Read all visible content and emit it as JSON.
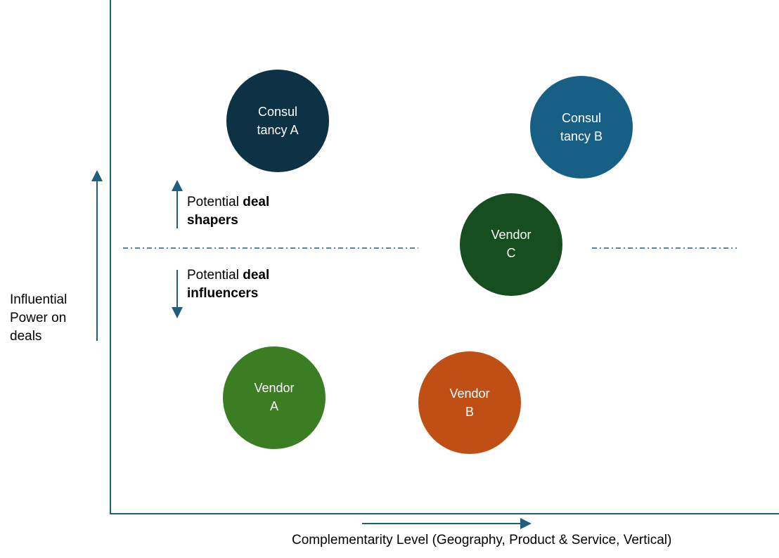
{
  "axes": {
    "y_label_lines": [
      "Influential",
      "Power on",
      "deals"
    ],
    "x_label": "Complementarity Level (Geography, Product & Service, Vertical)",
    "color": "#1f5f7e"
  },
  "zones": {
    "upper": {
      "prefix": "Potential ",
      "bold1": "deal",
      "bold2": "shapers"
    },
    "lower": {
      "prefix": "Potential ",
      "bold1": "deal",
      "bold2": "influencers"
    }
  },
  "bubbles": [
    {
      "line1": "Consul",
      "line2": "tancy A",
      "color": "#0d3245"
    },
    {
      "line1": "Consul",
      "line2": "tancy B",
      "color": "#175f85"
    },
    {
      "line1": "Vendor",
      "line2": "C",
      "color": "#164e1f"
    },
    {
      "line1": "Vendor",
      "line2": "A",
      "color": "#3b7d23"
    },
    {
      "line1": "Vendor",
      "line2": "B",
      "color": "#c04f15"
    }
  ]
}
